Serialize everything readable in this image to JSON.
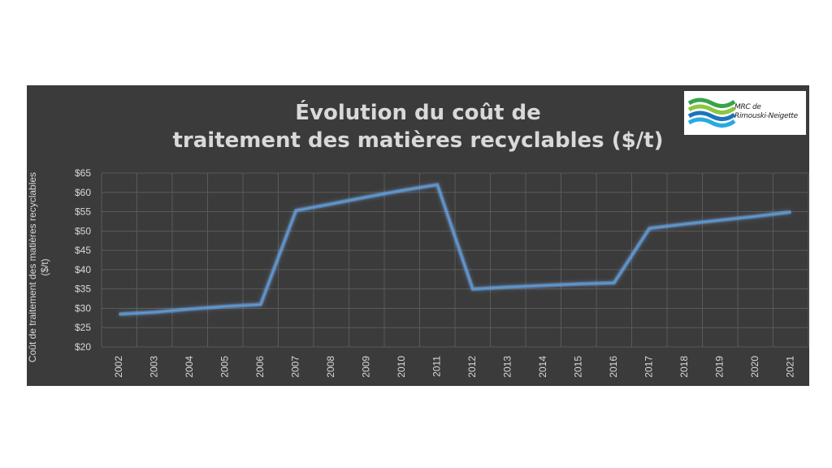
{
  "title_line1": "Évolution du coût de",
  "title_line2": "traitement des matières recyclables ($/t)",
  "logo": {
    "line1": "MRC de",
    "line2": "Rimouski-Neigette"
  },
  "colors": {
    "background": "#3b3b3b",
    "line": "#5b9bd5",
    "glow": "#7fb8ff",
    "grid": "#5a5a5a",
    "text": "#d9d9d9"
  },
  "chart_data": {
    "type": "line",
    "title": "Évolution du coût de traitement des matières recyclables ($/t)",
    "xlabel": "",
    "ylabel": "Coût de traitement des matières recyclables ($/t)",
    "x": [
      "2002",
      "2003",
      "2004",
      "2005",
      "2006",
      "2007",
      "2008",
      "2009",
      "2010",
      "2011",
      "2012",
      "2013",
      "2014",
      "2015",
      "2016",
      "2017",
      "2018",
      "2019",
      "2020",
      "2021"
    ],
    "series": [
      {
        "values": [
          28.5,
          29.0,
          29.8,
          30.5,
          31.0,
          55.3,
          57.0,
          58.8,
          60.5,
          62.0,
          35.0,
          35.5,
          35.9,
          36.3,
          36.6,
          50.7,
          51.8,
          52.8,
          53.8,
          54.9
        ]
      }
    ],
    "ylim": [
      20,
      65
    ],
    "yticks": [
      "$20",
      "$25",
      "$30",
      "$35",
      "$40",
      "$45",
      "$50",
      "$55",
      "$60",
      "$65"
    ],
    "grid": true,
    "legend": "none"
  }
}
